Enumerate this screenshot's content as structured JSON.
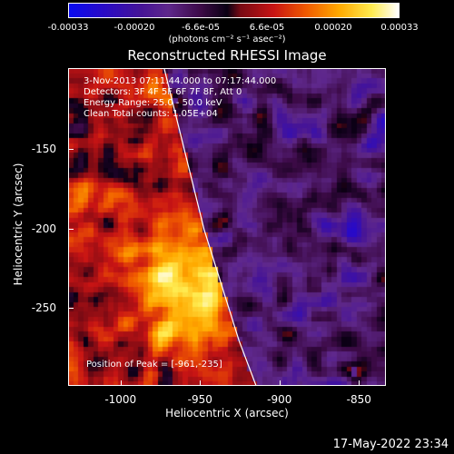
{
  "colorbar": {
    "ticks": [
      "-0.00033",
      "-0.00020",
      "-6.6e-05",
      "6.6e-05",
      "0.00020",
      "0.00033"
    ],
    "units": "(photons cm⁻² s⁻¹ asec⁻²)"
  },
  "title": "Reconstructed RHESSI Image",
  "info": {
    "time_range": "3-Nov-2013 07:11:44.000 to 07:17:44.000",
    "detectors": "Detectors: 3F 4F 5F 6F 7F 8F, Att 0",
    "energy": "Energy Range: 25.0 - 50.0 keV",
    "method": "Clean     Total counts: 1.05E+04",
    "peak": "Position of Peak = [-961,-235]"
  },
  "axes": {
    "xlabel": "Heliocentric X (arcsec)",
    "ylabel": "Heliocentric Y (arcsec)",
    "xlim": [
      -1033,
      -833
    ],
    "ylim": [
      -299,
      -99
    ],
    "xticks": [
      "-1000",
      "-950",
      "-900",
      "-850"
    ],
    "xtick_values": [
      -1000,
      -950,
      -900,
      -850
    ],
    "yticks": [
      "-150",
      "-200",
      "-250"
    ],
    "ytick_values": [
      -150,
      -200,
      -250
    ]
  },
  "limb_points": [
    [
      -973,
      -99
    ],
    [
      -948,
      -200
    ],
    [
      -926,
      -270
    ],
    [
      -915,
      -299
    ]
  ],
  "peak_position": [
    -961,
    -235
  ],
  "colors": {
    "text": "#ffffff",
    "background": "#000000",
    "limb": "#ffffff"
  },
  "footer": "17-May-2022 23:34"
}
